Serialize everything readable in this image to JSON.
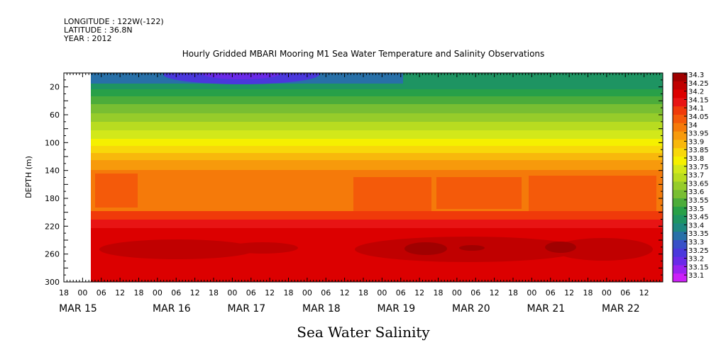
{
  "header": {
    "longitude": "LONGITUDE : 122W(-122)",
    "latitude": "LATITUDE : 36.8N",
    "year": "YEAR : 2012"
  },
  "chart_data": {
    "type": "heatmap",
    "title": "Hourly Gridded MBARI Mooring M1 Sea Water Temperature and Salinity Observations",
    "xlabel": "Sea Water Salinity",
    "ylabel": "DEPTH (m)",
    "ylim": [
      300,
      0
    ],
    "y_ticks": [
      20,
      60,
      100,
      140,
      180,
      220,
      260,
      300
    ],
    "x_hour_ticks": [
      "18",
      "00",
      "06",
      "12",
      "18",
      "00",
      "06",
      "12",
      "18",
      "00",
      "06",
      "12",
      "18",
      "00",
      "06",
      "12",
      "18",
      "00",
      "06",
      "12",
      "18",
      "00",
      "06",
      "12",
      "18",
      "00",
      "06",
      "12",
      "18",
      "00",
      "06",
      "12"
    ],
    "x_date_labels": [
      "MAR 15",
      "MAR 16",
      "MAR 17",
      "MAR 18",
      "MAR 19",
      "MAR 20",
      "MAR 21",
      "MAR 22"
    ],
    "x_range_hours": [
      0,
      192
    ],
    "data_start_hour": 6,
    "colorbar_levels": [
      "34.3",
      "34.25",
      "34.2",
      "34.15",
      "34.1",
      "34.05",
      "34",
      "33.95",
      "33.9",
      "33.85",
      "33.8",
      "33.75",
      "33.7",
      "33.65",
      "33.6",
      "33.55",
      "33.5",
      "33.45",
      "33.4",
      "33.35",
      "33.3",
      "33.25",
      "33.2",
      "33.15",
      "33.1"
    ],
    "colorbar_colors": [
      "#a00000",
      "#c00000",
      "#dc0000",
      "#e81414",
      "#f03a0a",
      "#f45a0a",
      "#f57a0a",
      "#f79a0c",
      "#f8b80c",
      "#f8d80a",
      "#f5f000",
      "#d2e81a",
      "#b8dc20",
      "#96cc2a",
      "#78be32",
      "#4cac3a",
      "#28a048",
      "#1e9462",
      "#1e8880",
      "#2870a8",
      "#3850c8",
      "#4a38dc",
      "#6a2ae8",
      "#9a22f0",
      "#cc20f8"
    ],
    "profile_by_depth": {
      "depths": [
        0,
        20,
        40,
        60,
        80,
        100,
        120,
        140,
        160,
        180,
        200,
        220,
        240,
        260,
        280,
        300
      ],
      "salinity_levels": [
        33.45,
        33.45,
        33.55,
        33.75,
        33.85,
        33.9,
        33.95,
        34.0,
        34.0,
        34.0,
        34.05,
        34.15,
        34.2,
        34.25,
        34.2,
        34.15
      ]
    }
  }
}
